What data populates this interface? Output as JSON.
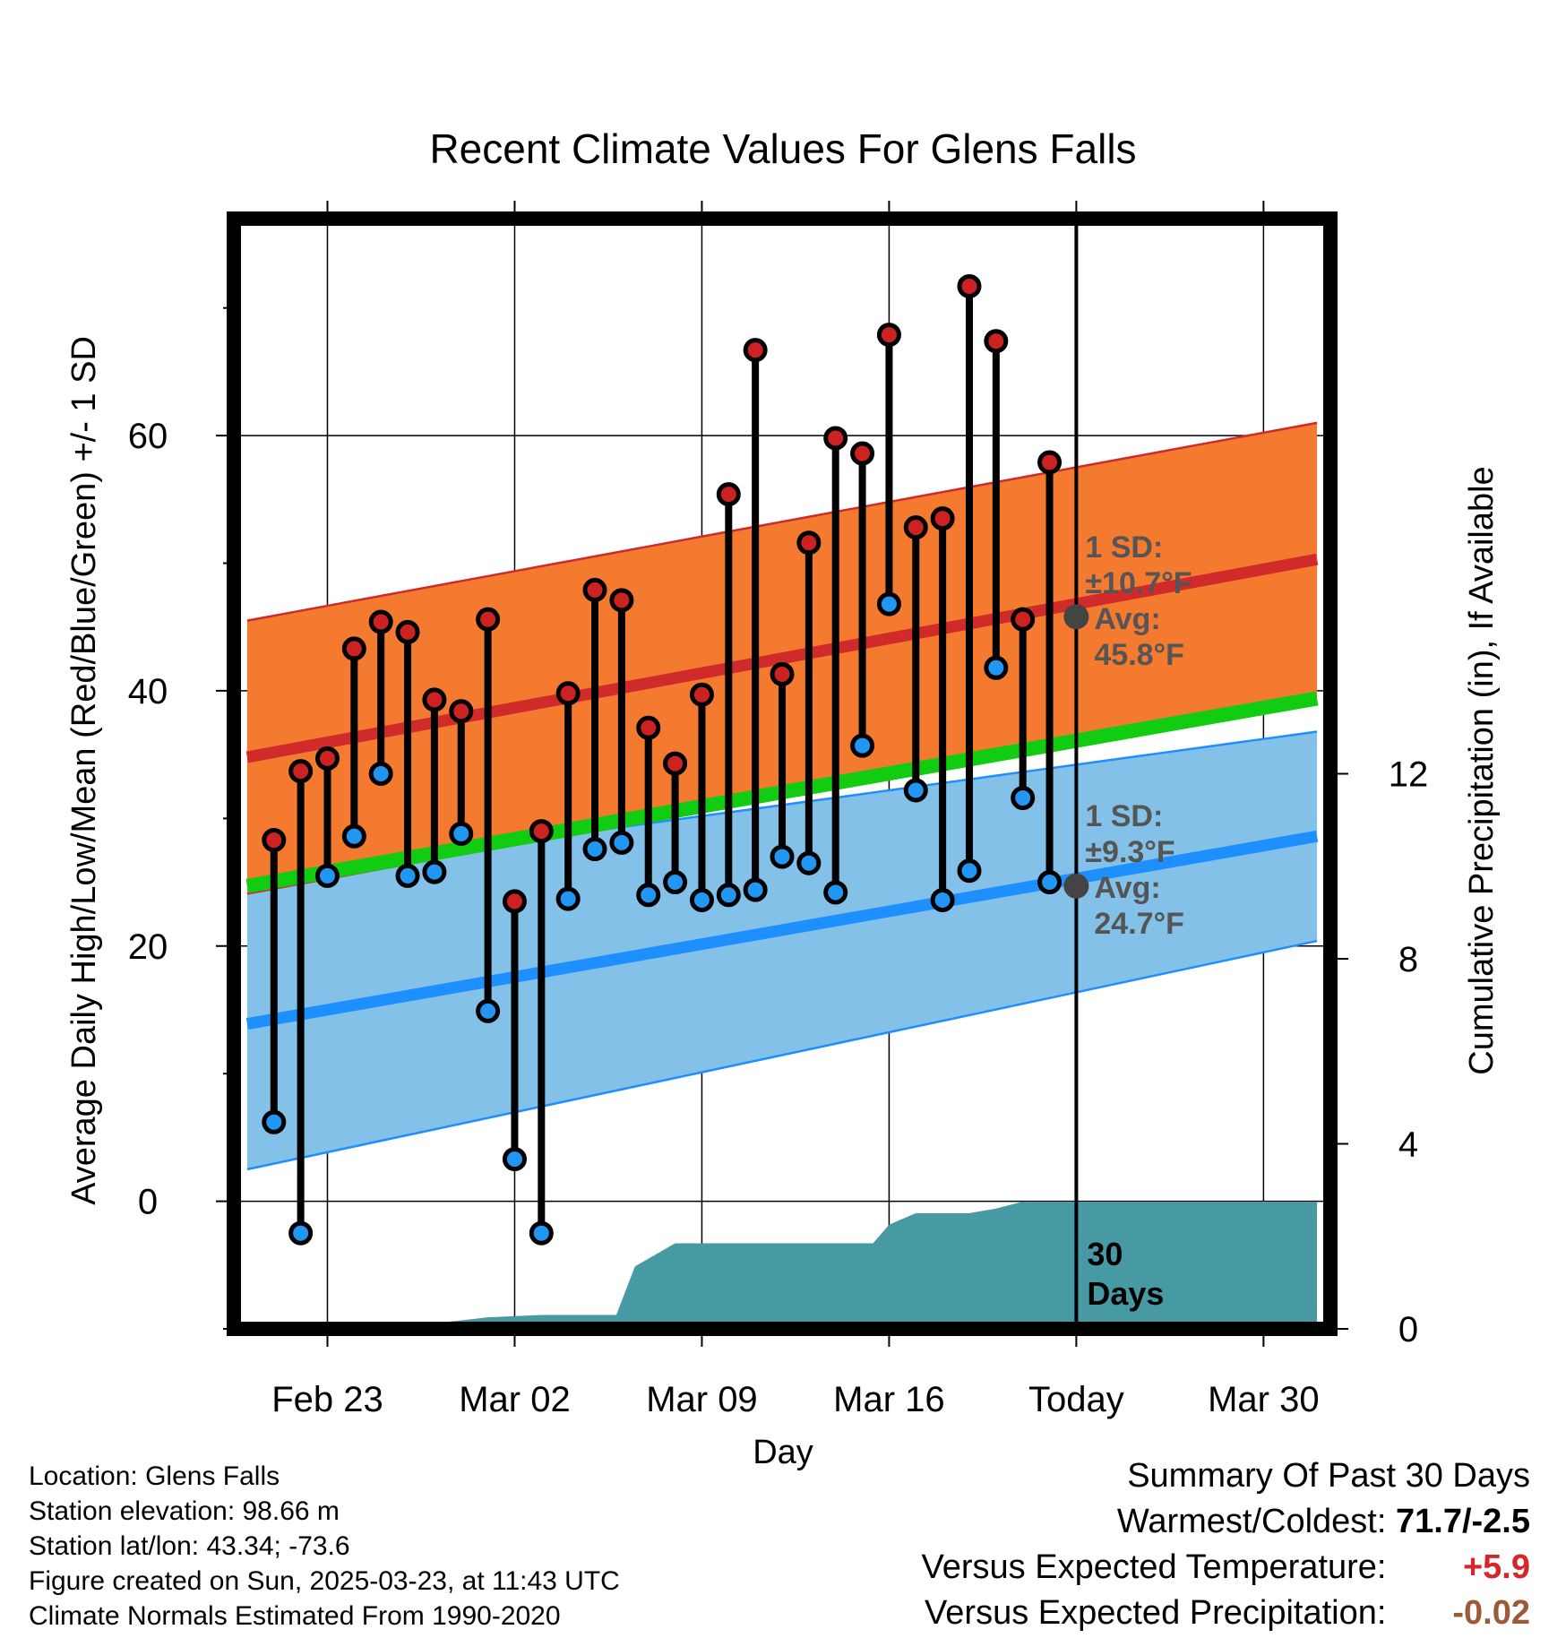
{
  "chart_data": {
    "type": "line",
    "title": "Recent Climate Values For Glens Falls",
    "xlabel": "Day",
    "ylabel": "Average Daily High/Low/Mean (Red/Blue/Green) +/- 1 SD",
    "y2label": "Cumulative Precipitation (in), If Available",
    "ylim": [
      -10,
      77
    ],
    "y2lim": [
      0,
      24
    ],
    "yticks": [
      "0",
      "20",
      "40",
      "60"
    ],
    "yticks_values": [
      0,
      20,
      40,
      60
    ],
    "y2ticks": [
      "0",
      "4",
      "8",
      "12"
    ],
    "y2ticks_values": [
      0,
      4,
      8,
      12
    ],
    "xlim": [
      -3.5,
      37.5
    ],
    "xticks": [
      "Feb 23",
      "Mar 02",
      "Mar 09",
      "Mar 16",
      "Today",
      "Mar 30"
    ],
    "xticks_values": [
      0,
      7,
      14,
      21,
      28,
      35
    ],
    "grid": true,
    "today_x": 28,
    "days_label_lines": [
      "30",
      "Days"
    ],
    "colors": {
      "high_band": "#f47a30",
      "high_line": "#d12a2a",
      "low_band": "#83c1e8",
      "low_line": "#1e8fff",
      "mean_line": "#11cc11",
      "precip": "#479aa4",
      "high_dot": "#cc2222",
      "low_dot": "#2196f3",
      "annotation": "#555555"
    },
    "normal_high": {
      "x": [
        -3,
        37
      ],
      "mean": [
        34.8,
        50.3
      ],
      "sd": [
        10.7,
        10.7
      ]
    },
    "normal_low": {
      "x": [
        -3,
        37
      ],
      "mean": [
        13.9,
        28.6
      ],
      "sd": [
        11.4,
        8.2
      ]
    },
    "normal_mean": {
      "x": [
        -3,
        37
      ],
      "values": [
        24.7,
        39.4
      ]
    },
    "high_annotation": {
      "x": 28,
      "value": 45.8,
      "lines": [
        "1 SD:",
        "±10.7°F",
        "Avg:",
        "45.8°F"
      ]
    },
    "low_annotation": {
      "x": 28,
      "value": 24.7,
      "lines": [
        "1 SD:",
        "±9.3°F",
        "Avg:",
        "24.7°F"
      ]
    },
    "daily": {
      "x": [
        -2,
        -1,
        0,
        1,
        2,
        3,
        4,
        5,
        6,
        7,
        8,
        9,
        10,
        11,
        12,
        13,
        14,
        15,
        16,
        17,
        18,
        19,
        20,
        21,
        22,
        23,
        24,
        25,
        26,
        27
      ],
      "high": [
        28.3,
        33.7,
        34.7,
        43.3,
        45.4,
        44.6,
        39.3,
        38.4,
        45.6,
        23.5,
        29.0,
        39.8,
        47.9,
        47.1,
        37.1,
        34.3,
        39.7,
        55.4,
        66.7,
        41.3,
        51.6,
        59.8,
        58.6,
        67.9,
        52.8,
        53.5,
        71.7,
        67.4,
        45.6,
        57.9
      ],
      "low": [
        6.2,
        -2.5,
        25.5,
        28.6,
        33.5,
        25.5,
        25.8,
        28.8,
        14.9,
        3.3,
        -2.5,
        23.7,
        27.6,
        28.1,
        24.0,
        25.0,
        23.6,
        24.0,
        24.4,
        27.0,
        26.5,
        24.2,
        35.7,
        46.8,
        32.2,
        23.6,
        25.9,
        41.8,
        31.6,
        25.0
      ]
    },
    "precip": {
      "x": [
        -3,
        0,
        2,
        3.5,
        4,
        6,
        8,
        9,
        10,
        10.8,
        11.5,
        13,
        15,
        17,
        20,
        20.4,
        21,
        22,
        24,
        25,
        26,
        27,
        28,
        30,
        37
      ],
      "values": [
        0,
        0,
        0,
        0,
        0.12,
        0.25,
        0.3,
        0.3,
        0.3,
        0.3,
        1.35,
        1.85,
        1.85,
        1.85,
        1.85,
        1.85,
        2.25,
        2.5,
        2.5,
        2.6,
        2.75,
        2.75,
        2.75,
        2.75,
        2.75
      ]
    }
  },
  "footer": {
    "location": "Location: Glens Falls",
    "elevation": "Station elevation: 98.66 m",
    "latlon": "Station lat/lon: 43.34; -73.6",
    "created": "Figure created on Sun, 2025-03-23, at 11:43 UTC",
    "normals": "Climate Normals Estimated From 1990-2020"
  },
  "summary": {
    "heading": "Summary Of Past 30 Days",
    "warmest_label": "Warmest/Coldest:",
    "warmest_value": "71.7/-2.5",
    "temp_label": "Versus Expected Temperature:",
    "temp_value": "+5.9",
    "precip_label": "Versus Expected Precipitation:",
    "precip_value": "-0.02"
  }
}
